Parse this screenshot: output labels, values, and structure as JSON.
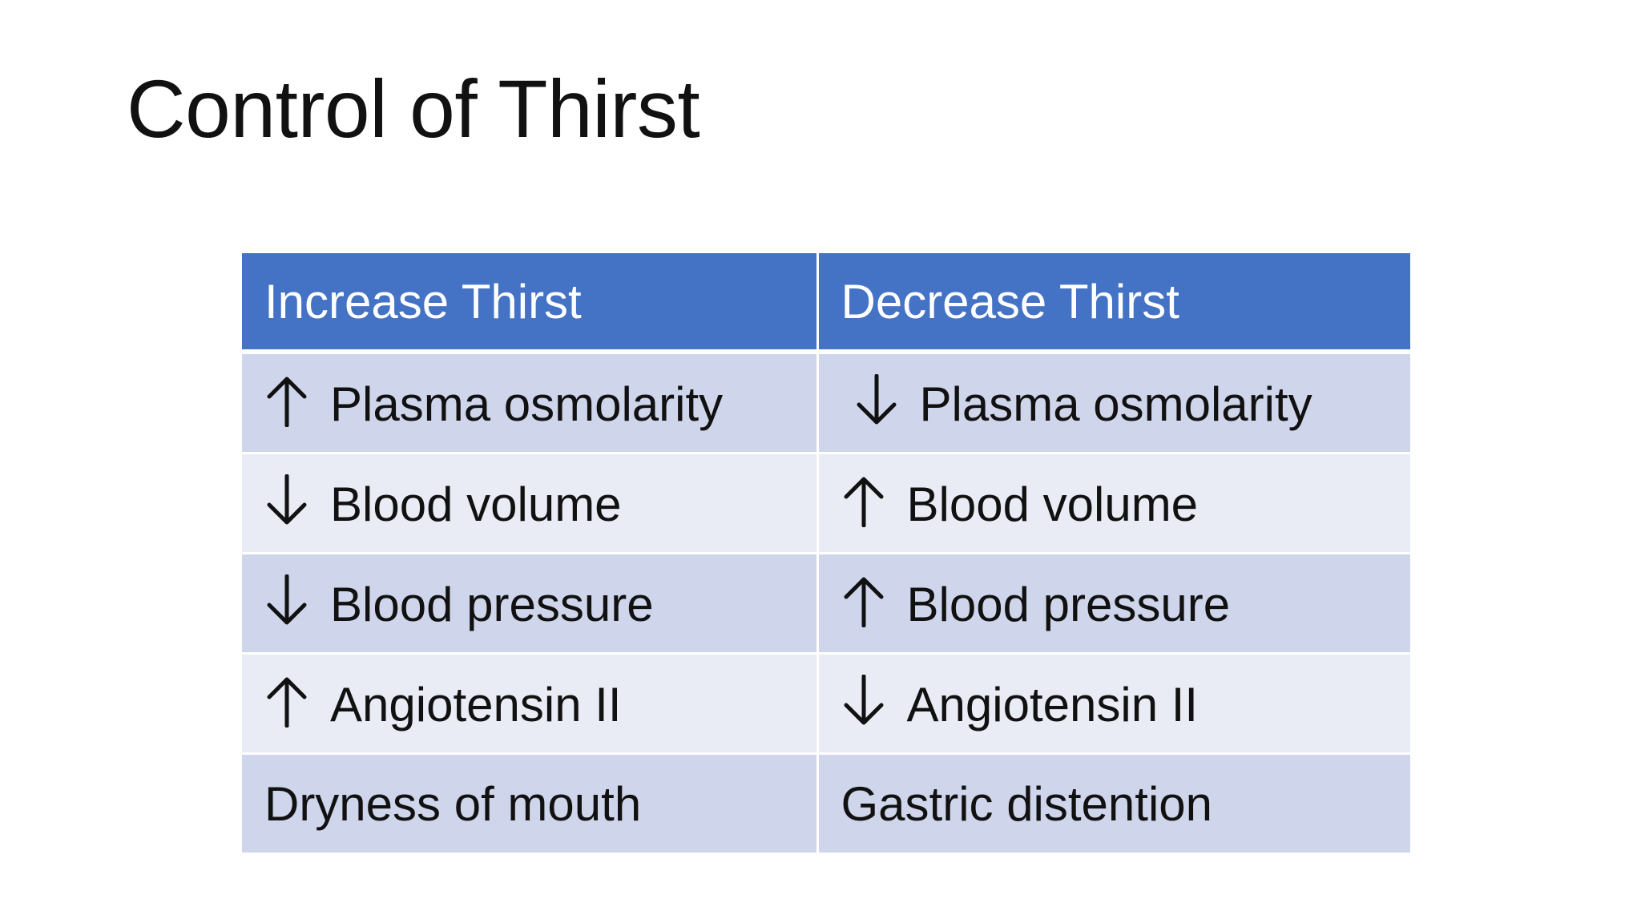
{
  "slide": {
    "title": "Control of Thirst"
  },
  "table": {
    "headers": [
      "Increase Thirst",
      "Decrease Thirst"
    ],
    "rows": [
      {
        "increase": {
          "arrow": "up-arrow-icon",
          "text": "Plasma osmolarity"
        },
        "decrease": {
          "arrow": "down-arrow-icon",
          "text": "Plasma osmolarity"
        }
      },
      {
        "increase": {
          "arrow": "down-arrow-icon",
          "text": "Blood volume"
        },
        "decrease": {
          "arrow": "up-arrow-icon",
          "text": "Blood volume"
        }
      },
      {
        "increase": {
          "arrow": "down-arrow-icon",
          "text": "Blood pressure"
        },
        "decrease": {
          "arrow": "up-arrow-icon",
          "text": "Blood pressure"
        }
      },
      {
        "increase": {
          "arrow": "up-arrow-icon",
          "text": "Angiotensin II"
        },
        "decrease": {
          "arrow": "down-arrow-icon",
          "text": "Angiotensin II"
        }
      },
      {
        "increase": {
          "arrow": "",
          "text": "Dryness of mouth"
        },
        "decrease": {
          "arrow": "",
          "text": "Gastric distention"
        }
      }
    ]
  },
  "colors": {
    "header_bg": "#4472c4",
    "row_dark": "#cfd5ea",
    "row_light": "#e9ebf5",
    "text": "#111111"
  }
}
